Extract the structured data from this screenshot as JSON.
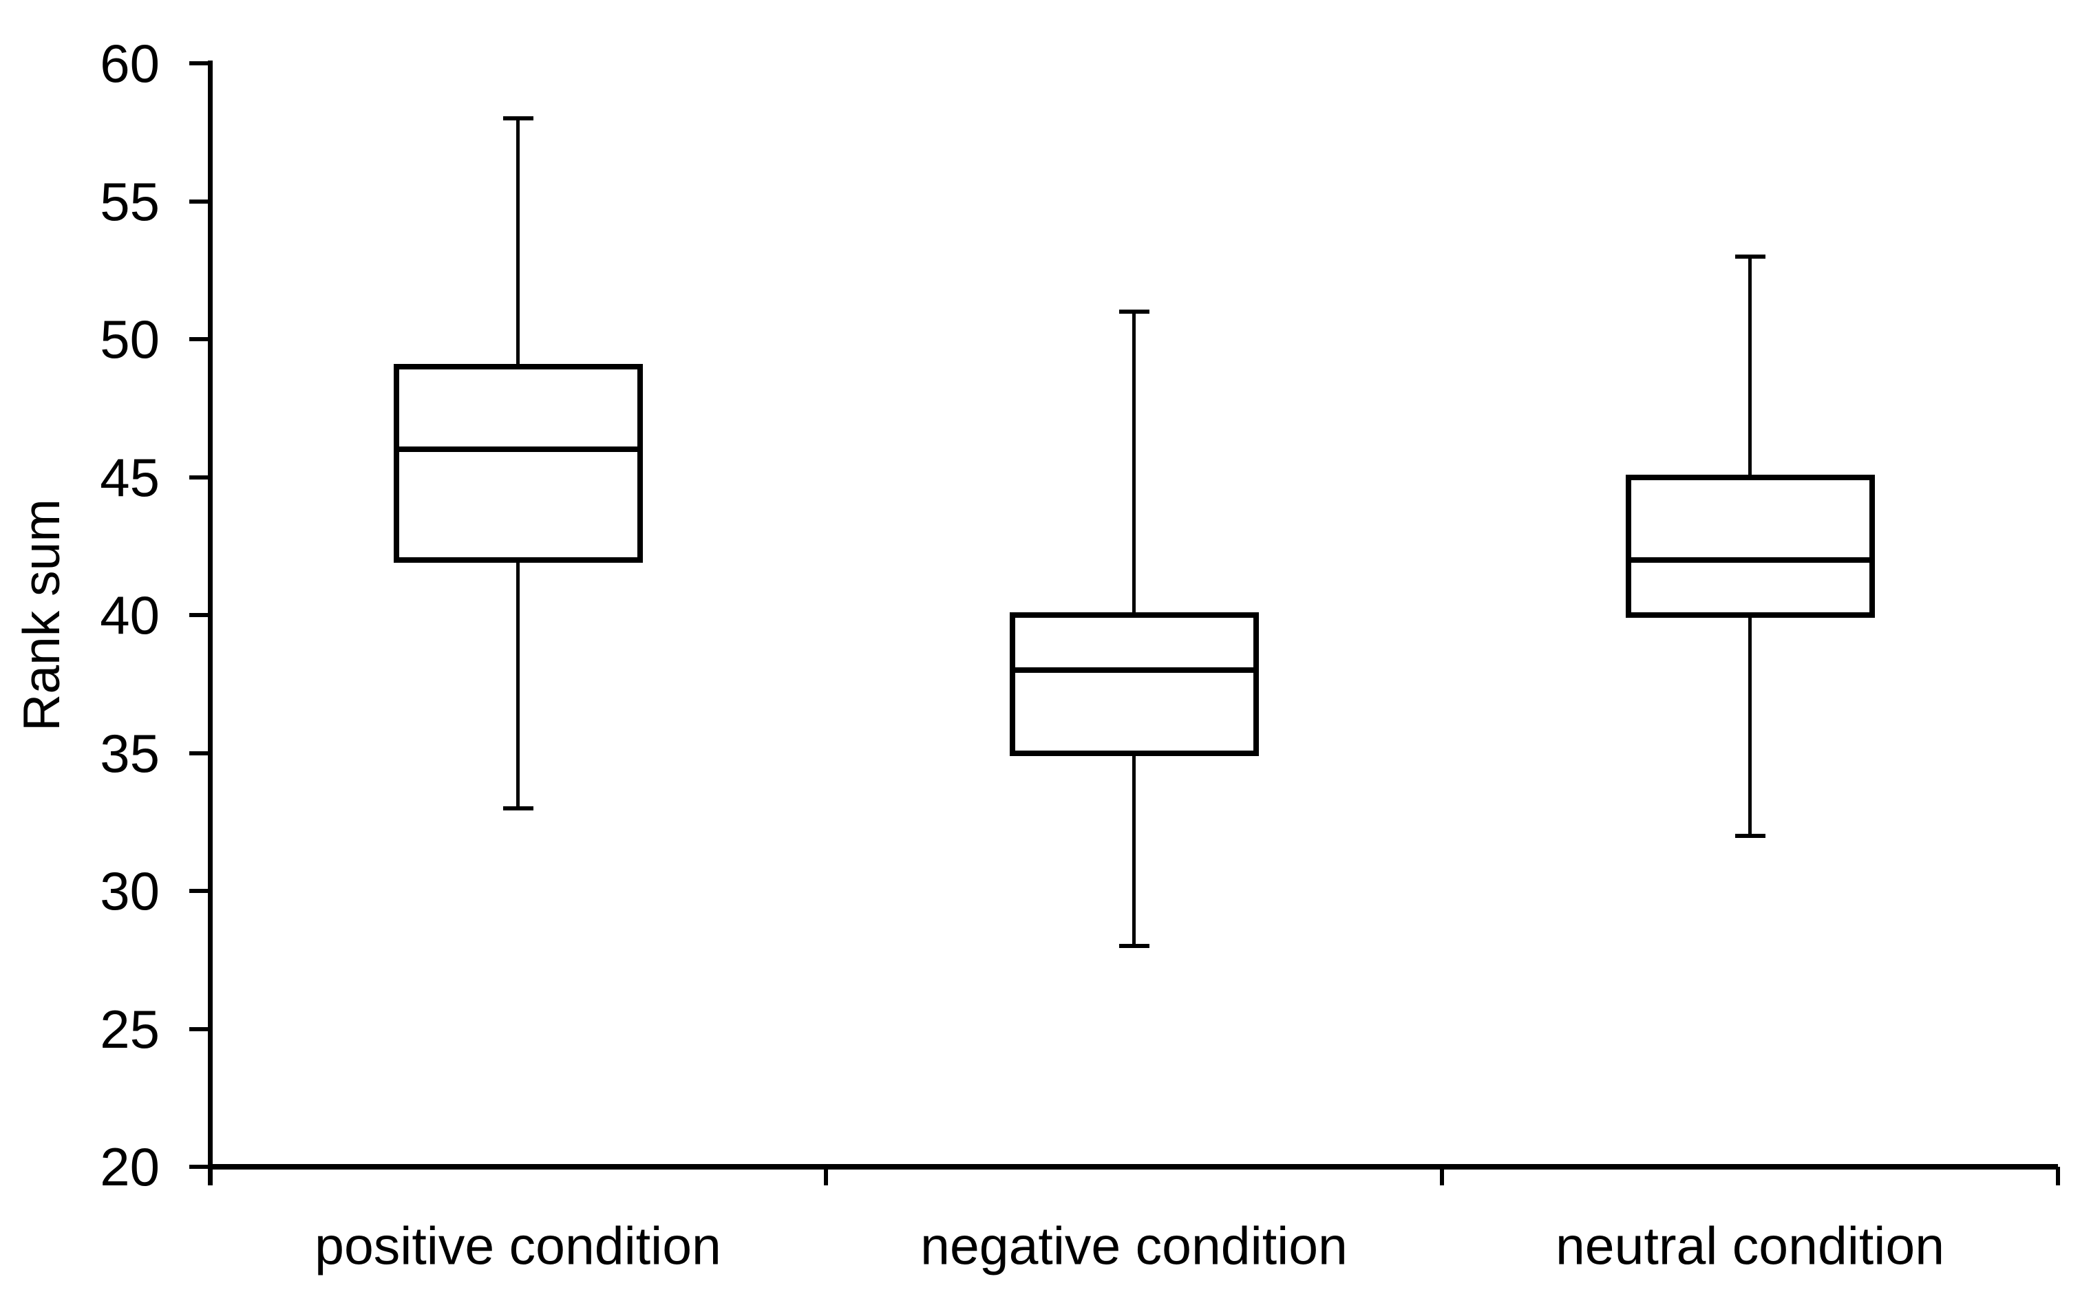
{
  "chart_data": {
    "type": "box",
    "title": "",
    "xlabel": "",
    "ylabel": "Rank sum",
    "ylim": [
      20,
      60
    ],
    "y_tick_step": 5,
    "y_ticks": [
      60,
      55,
      50,
      45,
      40,
      35,
      30,
      25,
      20
    ],
    "grid": false,
    "legend_position": "none",
    "categories": [
      "positive condition",
      "negative condition",
      "neutral condition"
    ],
    "series": [
      {
        "name": "positive condition",
        "min": 33,
        "q1": 42,
        "median": 46,
        "q3": 49,
        "max": 58
      },
      {
        "name": "negative condition",
        "min": 28,
        "q1": 35,
        "median": 38,
        "q3": 40,
        "max": 51
      },
      {
        "name": "neutral condition",
        "min": 32,
        "q1": 40,
        "median": 42,
        "q3": 45,
        "max": 53
      }
    ],
    "colors": {
      "line": "#000000",
      "box_fill": "#ffffff",
      "background": "#ffffff"
    }
  }
}
